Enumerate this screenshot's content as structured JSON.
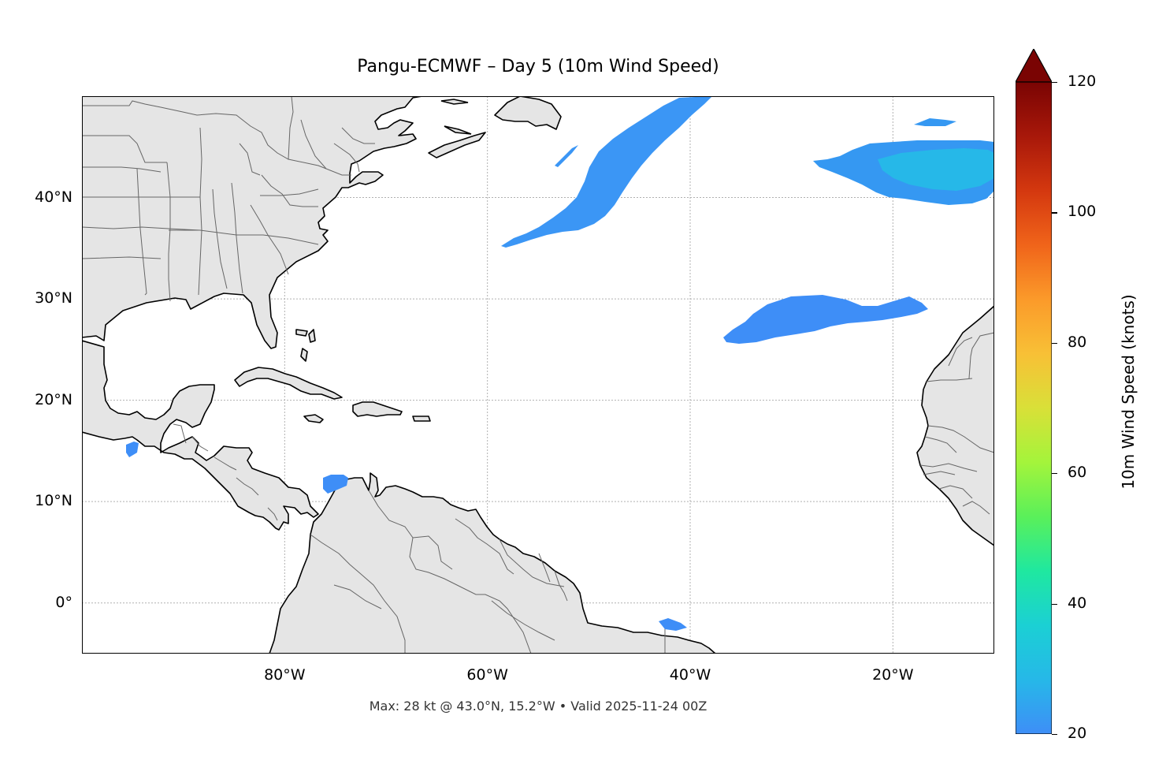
{
  "title": "Pangu-ECMWF – Day 5 (10m Wind Speed)",
  "footer": "Max: 28 kt @ 43.0°N, 15.2°W • Valid 2025-11-24 00Z",
  "map": {
    "projection": "PlateCarree",
    "extent": {
      "lon": [
        -100,
        -10
      ],
      "lat": [
        -5,
        50
      ]
    },
    "land_color": "#e5e5e5",
    "coastline_color": "#000000",
    "border_color": "#666666",
    "gridline_color": "#b0b0b0",
    "lat_labels": [
      {
        "value": 40,
        "text": "40°N"
      },
      {
        "value": 30,
        "text": "30°N"
      },
      {
        "value": 20,
        "text": "20°N"
      },
      {
        "value": 10,
        "text": "10°N"
      },
      {
        "value": 0,
        "text": "0°"
      }
    ],
    "lon_labels": [
      {
        "value": -80,
        "text": "80°W"
      },
      {
        "value": -60,
        "text": "60°W"
      },
      {
        "value": -40,
        "text": "40°W"
      },
      {
        "value": -20,
        "text": "20°W"
      }
    ]
  },
  "wind_regions": [
    {
      "name": "north-atlantic-band",
      "speed_kt": 22,
      "color": "#3b96f5"
    },
    {
      "name": "northeast-atlantic-max",
      "speed_kt": 28,
      "color": "#26b8e8"
    },
    {
      "name": "central-atlantic-band",
      "speed_kt": 21,
      "color": "#3e8ef7"
    },
    {
      "name": "caribbean-patch",
      "speed_kt": 20,
      "color": "#3e8ef7"
    },
    {
      "name": "pacific-patch",
      "speed_kt": 20,
      "color": "#3e8ef7"
    },
    {
      "name": "brazil-patch",
      "speed_kt": 20,
      "color": "#3e8ef7"
    }
  ],
  "colorbar": {
    "label": "10m Wind Speed (knots)",
    "min": 20,
    "max": 120,
    "extend": "max",
    "ticks": [
      {
        "value": 20,
        "text": "20"
      },
      {
        "value": 40,
        "text": "40"
      },
      {
        "value": 60,
        "text": "60"
      },
      {
        "value": 80,
        "text": "80"
      },
      {
        "value": 100,
        "text": "100"
      },
      {
        "value": 120,
        "text": "120"
      }
    ],
    "colormap": [
      "#3e8ef7",
      "#26b8e8",
      "#1bd0d4",
      "#1fe8a0",
      "#5af05a",
      "#a4f43b",
      "#d9e038",
      "#f8c036",
      "#fb9a2a",
      "#f0641a",
      "#d4380f",
      "#a8180a",
      "#7a0403"
    ]
  }
}
